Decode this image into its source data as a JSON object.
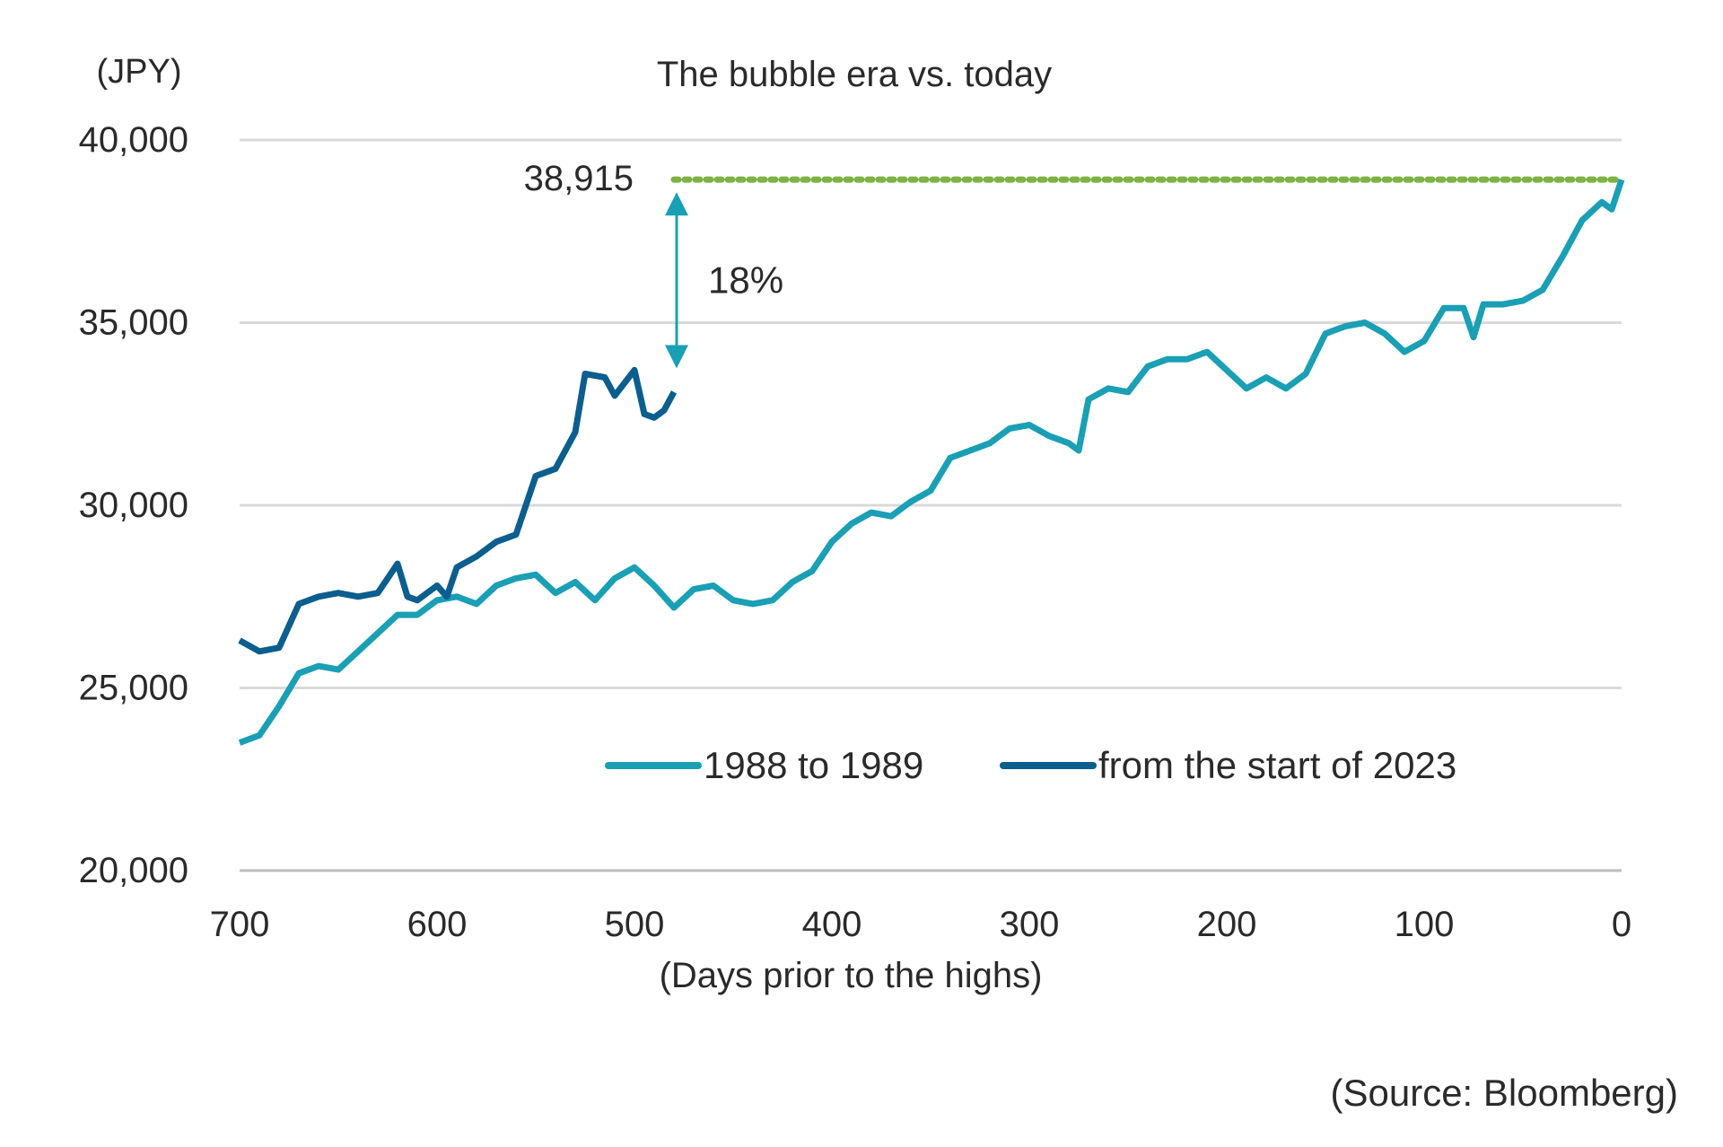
{
  "chart_data": {
    "type": "line",
    "title": "The bubble era vs. today",
    "ylabel": "(JPY)",
    "xlabel": "(Days prior to the highs)",
    "source": "(Source: Bloomberg)",
    "xlim": [
      700,
      0
    ],
    "ylim": [
      20000,
      40000
    ],
    "x_reversed": true,
    "grid": true,
    "legend_position": "bottom-center",
    "x_ticks": [
      "700",
      "600",
      "500",
      "400",
      "300",
      "200",
      "100",
      "0"
    ],
    "y_ticks": [
      "20,000",
      "25,000",
      "30,000",
      "35,000",
      "40,000"
    ],
    "series": [
      {
        "name": "1988 to 1989",
        "color": "#1a9fb5",
        "x": [
          700,
          690,
          680,
          670,
          660,
          650,
          640,
          630,
          620,
          610,
          600,
          590,
          580,
          570,
          560,
          550,
          540,
          530,
          520,
          510,
          500,
          490,
          480,
          470,
          460,
          450,
          440,
          430,
          420,
          410,
          400,
          390,
          380,
          370,
          360,
          350,
          340,
          330,
          320,
          310,
          300,
          290,
          280,
          275,
          270,
          260,
          250,
          240,
          230,
          220,
          210,
          200,
          190,
          180,
          170,
          160,
          150,
          140,
          130,
          120,
          110,
          100,
          90,
          80,
          75,
          70,
          60,
          50,
          40,
          30,
          20,
          10,
          5,
          0
        ],
        "y": [
          23500,
          23700,
          24500,
          25400,
          25600,
          25500,
          26000,
          26500,
          27000,
          27000,
          27400,
          27500,
          27300,
          27800,
          28000,
          28100,
          27600,
          27900,
          27400,
          28000,
          28300,
          27800,
          27200,
          27700,
          27800,
          27400,
          27300,
          27400,
          27900,
          28200,
          29000,
          29500,
          29800,
          29700,
          30100,
          30400,
          31300,
          31500,
          31700,
          32100,
          32200,
          31900,
          31700,
          31500,
          32900,
          33200,
          33100,
          33800,
          34000,
          34000,
          34200,
          33700,
          33200,
          33500,
          33200,
          33600,
          34700,
          34900,
          35000,
          34700,
          34200,
          34500,
          35400,
          35400,
          34600,
          35500,
          35500,
          35600,
          35900,
          36800,
          37800,
          38300,
          38100,
          38915
        ]
      },
      {
        "name": "from the start of 2023",
        "color": "#0b5e8e",
        "x": [
          700,
          690,
          680,
          670,
          660,
          650,
          640,
          630,
          620,
          615,
          610,
          600,
          595,
          590,
          580,
          570,
          560,
          550,
          540,
          530,
          525,
          515,
          510,
          500,
          495,
          490,
          485,
          480
        ],
        "y": [
          26300,
          26000,
          26100,
          27300,
          27500,
          27600,
          27500,
          27600,
          28400,
          27500,
          27400,
          27800,
          27500,
          28300,
          28600,
          29000,
          29200,
          30800,
          31000,
          32000,
          33600,
          33500,
          33000,
          33700,
          32500,
          32400,
          32600,
          33100
        ]
      }
    ],
    "annotations": {
      "peak_value": 38915,
      "peak_label": "38,915",
      "peak_line_color": "#7cb342",
      "gap_label": "18%",
      "gap_arrow_color": "#1a9fb5"
    }
  }
}
